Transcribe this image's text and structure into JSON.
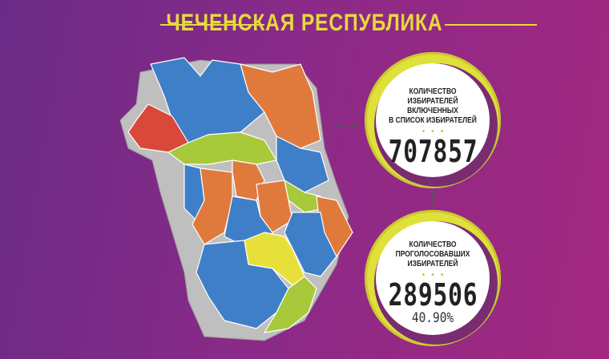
{
  "header": {
    "title": "ЧЕЧЕНСКАЯ РЕСПУБЛИКА"
  },
  "stats": [
    {
      "label_lines": [
        "КОЛИЧЕСТВО",
        "ИЗБИРАТЕЛЕЙ ВКЛЮЧЕННЫХ",
        "В СПИСОК ИЗБИРАТЕЛЕЙ"
      ],
      "value": "707857"
    },
    {
      "label_lines": [
        "КОЛИЧЕСТВО",
        "ПРОГОЛОСОВАВШИХ",
        "ИЗБИРАТЕЛЕЙ"
      ],
      "value": "289506",
      "percent": "40.90%"
    }
  ],
  "colors": {
    "accent": "#e6d93c",
    "blue": "#3f7fc8",
    "orange": "#e07a3c",
    "red": "#d9493a",
    "green": "#a8c93a",
    "yellow": "#e8e03a"
  }
}
